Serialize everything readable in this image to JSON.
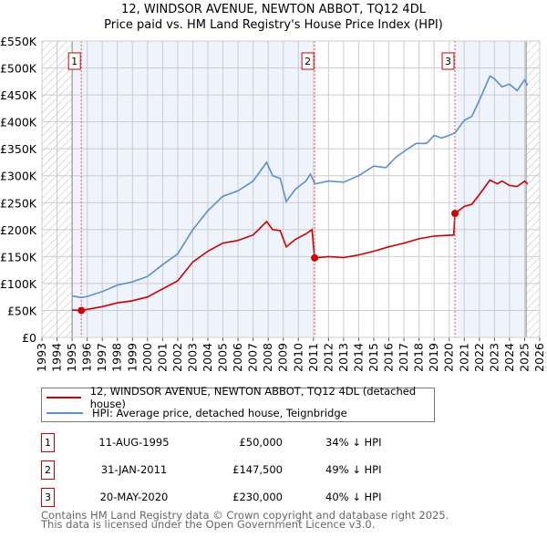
{
  "chart_data": {
    "type": "line",
    "title": "12, WINDSOR AVENUE, NEWTON ABBOT, TQ12 4DL",
    "subtitle": "Price paid vs. HM Land Registry's House Price Index (HPI)",
    "xlim": [
      1993,
      2026
    ],
    "ylim": [
      0,
      550000
    ],
    "y_ticks": [
      0,
      50000,
      100000,
      150000,
      200000,
      250000,
      300000,
      350000,
      400000,
      450000,
      500000,
      550000
    ],
    "y_tick_labels": [
      "£0",
      "£50K",
      "£100K",
      "£150K",
      "£200K",
      "£250K",
      "£300K",
      "£350K",
      "£400K",
      "£450K",
      "£500K",
      "£550K"
    ],
    "x_tick_labels": [
      "1993",
      "1994",
      "1995",
      "1996",
      "1997",
      "1998",
      "1999",
      "2000",
      "2001",
      "2002",
      "2003",
      "2004",
      "2005",
      "2006",
      "2007",
      "2008",
      "2009",
      "2010",
      "2011",
      "2012",
      "2013",
      "2014",
      "2015",
      "2016",
      "2017",
      "2018",
      "2019",
      "2020",
      "2021",
      "2022",
      "2023",
      "2024",
      "2025",
      "2026"
    ],
    "grid": true,
    "series": [
      {
        "name": "12, WINDSOR AVENUE, NEWTON ABBOT, TQ12 4DL (detached house)",
        "color": "#cc0000",
        "x": [
          1995,
          1995.6,
          1996,
          1997,
          1998,
          1999,
          2000,
          2001,
          2002,
          2003,
          2004,
          2005,
          2006,
          2007,
          2007.9,
          2008.3,
          2008.8,
          2009.2,
          2009.8,
          2010.5,
          2010.9,
          2011.08,
          2012,
          2013,
          2014,
          2015,
          2016,
          2017,
          2018,
          2019,
          2020.3,
          2020.38,
          2021,
          2021.5,
          2022,
          2022.7,
          2023.2,
          2023.5,
          2024,
          2024.5,
          2025,
          2025.2
        ],
        "y": [
          51000,
          50000,
          52000,
          57000,
          64000,
          68000,
          75000,
          90000,
          105000,
          140000,
          160000,
          175000,
          180000,
          190000,
          215000,
          200000,
          198000,
          168000,
          182000,
          192000,
          200000,
          147500,
          150000,
          148000,
          153000,
          160000,
          168000,
          175000,
          183000,
          188000,
          190000,
          230000,
          243000,
          247000,
          265000,
          292000,
          285000,
          290000,
          282000,
          280000,
          290000,
          285000
        ]
      },
      {
        "name": "HPI: Average price, detached house, Teignbridge",
        "color": "#5b8fd0",
        "x": [
          1995,
          1995.6,
          1996,
          1997,
          1998,
          1999,
          2000,
          2001,
          2002,
          2003,
          2004,
          2005,
          2006,
          2007,
          2007.9,
          2008.3,
          2008.8,
          2009.2,
          2009.8,
          2010.5,
          2010.8,
          2011.1,
          2012,
          2013,
          2014,
          2015,
          2015.8,
          2016.5,
          2017,
          2017.8,
          2018.5,
          2019,
          2019.5,
          2020,
          2020.4,
          2021,
          2021.5,
          2022,
          2022.7,
          2023,
          2023.5,
          2024,
          2024.5,
          2025,
          2025.2
        ],
        "y": [
          77000,
          74000,
          76000,
          85000,
          97000,
          103000,
          113000,
          135000,
          155000,
          200000,
          235000,
          262000,
          272000,
          290000,
          325000,
          300000,
          295000,
          252000,
          275000,
          290000,
          303000,
          285000,
          290000,
          288000,
          300000,
          318000,
          315000,
          335000,
          345000,
          360000,
          360000,
          375000,
          370000,
          375000,
          380000,
          403000,
          410000,
          440000,
          485000,
          480000,
          465000,
          470000,
          458000,
          478000,
          468000
        ]
      }
    ],
    "sales": [
      {
        "label": "1",
        "x": 1995.61,
        "y": 50000,
        "date": "11-AUG-1995",
        "price": "£50,000",
        "hpi": "34% ↓ HPI"
      },
      {
        "label": "2",
        "x": 2011.08,
        "y": 147500,
        "date": "31-JAN-2011",
        "price": "£147,500",
        "hpi": "49% ↓ HPI"
      },
      {
        "label": "3",
        "x": 2020.38,
        "y": 230000,
        "date": "20-MAY-2020",
        "price": "£230,000",
        "hpi": "40% ↓ HPI"
      }
    ],
    "legend_placement": "below"
  },
  "footer": {
    "line1": "Contains HM Land Registry data © Crown copyright and database right 2025.",
    "line2": "This data is licensed under the Open Government Licence v3.0."
  }
}
